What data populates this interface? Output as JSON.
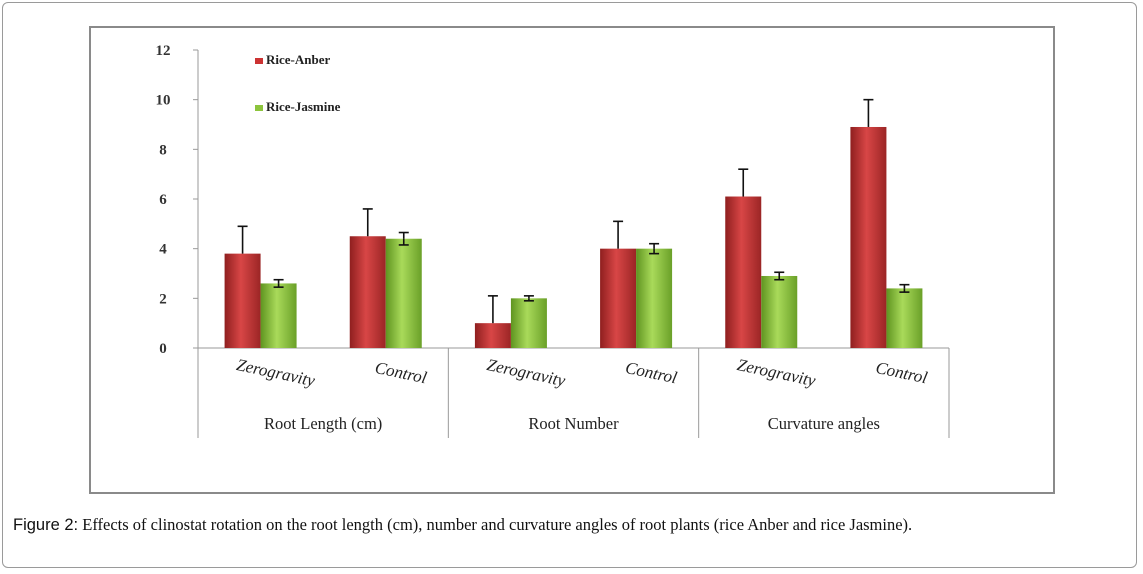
{
  "caption": {
    "label": "Figure 2:",
    "text": " Effects of clinostat rotation on the root length (cm), number and curvature angles of root plants (rice Anber and rice Jasmine)."
  },
  "chart_data": {
    "type": "bar",
    "title": "",
    "ylim": [
      0,
      12
    ],
    "yticks": [
      0,
      2,
      4,
      6,
      8,
      10,
      12
    ],
    "grid": false,
    "legend_position": "top-left",
    "groups": [
      {
        "label": "Root Length (cm)",
        "categories": [
          "Zerogravity",
          "Control"
        ]
      },
      {
        "label": "Root Number",
        "categories": [
          "Zerogravity",
          "Control"
        ]
      },
      {
        "label": "Curvature angles",
        "categories": [
          "Zerogravity",
          "Control"
        ]
      }
    ],
    "series": [
      {
        "name": "Rice-Anber",
        "color": "#cc3333",
        "values": [
          3.8,
          4.5,
          1.0,
          4.0,
          6.1,
          8.9
        ],
        "errors": [
          1.1,
          1.1,
          1.1,
          1.1,
          1.1,
          1.1
        ]
      },
      {
        "name": "Rice-Jasmine",
        "color": "#8cc43c",
        "values": [
          2.6,
          4.4,
          2.0,
          4.0,
          2.9,
          2.4
        ],
        "errors": [
          0.15,
          0.25,
          0.1,
          0.2,
          0.15,
          0.15
        ]
      }
    ]
  }
}
